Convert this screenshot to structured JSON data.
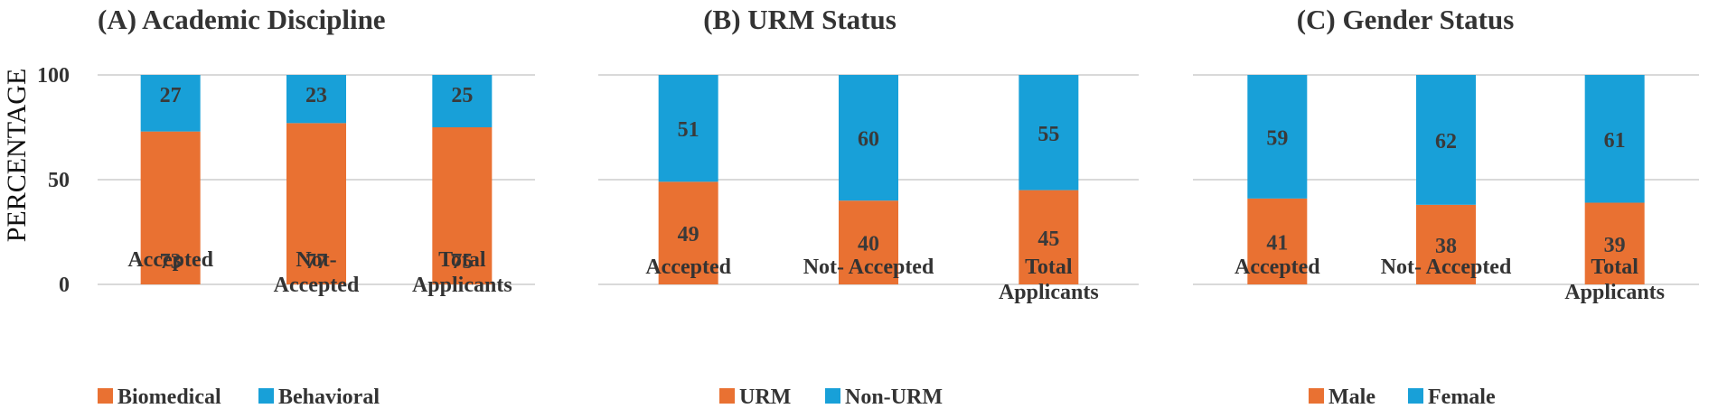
{
  "y_axis_label": "PERCENTAGE",
  "colors": {
    "series_a": "#E97132",
    "series_b": "#18A0D8",
    "label_text": "#3a3a3a",
    "grid": "#d9d9d9"
  },
  "chart_data": [
    {
      "type": "bar",
      "stacked": true,
      "title": "(A)  Academic Discipline",
      "categories": [
        [
          "Accepted"
        ],
        [
          "Not-",
          "Accepted"
        ],
        [
          "Total",
          "Applicants"
        ]
      ],
      "series": [
        {
          "name": "Biomedical",
          "values": [
            73,
            77,
            75
          ]
        },
        {
          "name": "Behavioral",
          "values": [
            27,
            23,
            25
          ]
        }
      ],
      "ylim": [
        0,
        100
      ],
      "yticks": [
        "0",
        "50",
        "100"
      ],
      "grid": true,
      "legend": "bottom-left"
    },
    {
      "type": "bar",
      "stacked": true,
      "title": "(B) URM Status",
      "categories": [
        [
          "Accepted"
        ],
        [
          "Not- Accepted"
        ],
        [
          "Total",
          "Applicants"
        ]
      ],
      "series": [
        {
          "name": "URM",
          "values": [
            49,
            40,
            45
          ]
        },
        {
          "name": "Non-URM",
          "values": [
            51,
            60,
            55
          ]
        }
      ],
      "ylim": [
        0,
        100
      ],
      "grid": true,
      "legend": "bottom-center"
    },
    {
      "type": "bar",
      "stacked": true,
      "title": "(C) Gender Status",
      "categories": [
        [
          "Accepted"
        ],
        [
          "Not- Accepted"
        ],
        [
          "Total",
          "Applicants"
        ]
      ],
      "series": [
        {
          "name": "Male",
          "values": [
            41,
            38,
            39
          ]
        },
        {
          "name": "Female",
          "values": [
            59,
            62,
            61
          ]
        }
      ],
      "ylim": [
        0,
        100
      ],
      "grid": true,
      "legend": "bottom-center"
    }
  ]
}
